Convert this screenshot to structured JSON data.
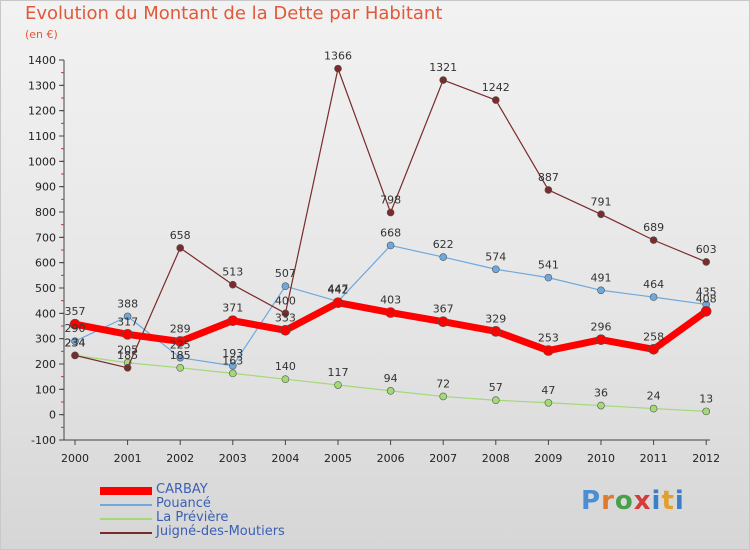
{
  "title": "Evolution du Montant de la Dette par Habitant",
  "subtitle": "(en €)",
  "logo_text": "Proxiti",
  "chart_data": {
    "type": "line",
    "title": "Evolution du Montant de la Dette par Habitant",
    "subtitle": "(en €)",
    "x": [
      "2000",
      "2001",
      "2002",
      "2003",
      "2004",
      "2005",
      "2006",
      "2007",
      "2008",
      "2009",
      "2010",
      "2011",
      "2012"
    ],
    "ylim": [
      -100,
      1400
    ],
    "yticks": [
      -100,
      0,
      100,
      200,
      300,
      400,
      500,
      600,
      700,
      800,
      900,
      1000,
      1100,
      1200,
      1300,
      1400
    ],
    "grid": false,
    "legend_position": "bottom-left",
    "series": [
      {
        "name": "CARBAY",
        "color": "#ff0000",
        "width": 7,
        "values": [
          357,
          317,
          289,
          371,
          333,
          442,
          403,
          367,
          329,
          253,
          296,
          258,
          408
        ]
      },
      {
        "name": "Pouancé",
        "color": "#6fa8dc",
        "width": 1.2,
        "values": [
          290,
          388,
          225,
          193,
          507,
          447,
          668,
          622,
          574,
          541,
          491,
          464,
          435
        ]
      },
      {
        "name": "La Prévière",
        "color": "#a3d977",
        "width": 1.2,
        "values": [
          234,
          205,
          185,
          163,
          140,
          117,
          94,
          72,
          57,
          47,
          36,
          24,
          13
        ]
      },
      {
        "name": "Juigné-des-Moutiers",
        "color": "#7a2b2b",
        "width": 1.2,
        "values": [
          234,
          185,
          658,
          513,
          400,
          1366,
          798,
          1321,
          1242,
          887,
          791,
          689,
          603
        ]
      }
    ]
  },
  "legend": [
    {
      "label": "CARBAY",
      "color": "#ff0000"
    },
    {
      "label": "Pouancé",
      "color": "#6fa8dc"
    },
    {
      "label": "La Prévière",
      "color": "#a3d977"
    },
    {
      "label": "Juigné-des-Moutiers",
      "color": "#7a2b2b"
    }
  ]
}
